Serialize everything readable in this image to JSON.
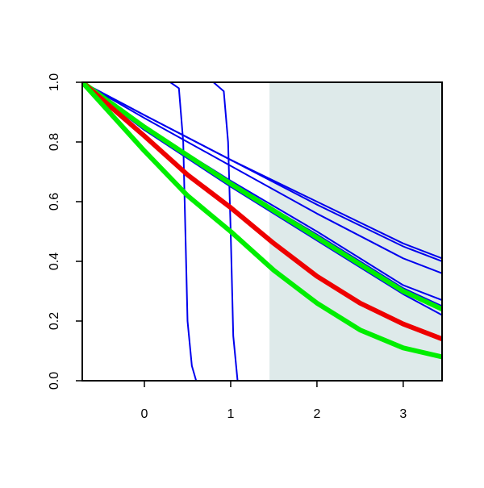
{
  "chart_data": {
    "type": "line",
    "title": "",
    "xlabel": "",
    "ylabel": "",
    "xlim": [
      -0.72,
      3.45
    ],
    "ylim": [
      0,
      1
    ],
    "x_ticks": [
      "0",
      "1",
      "2",
      "3"
    ],
    "y_ticks": [
      "0.0",
      "0.2",
      "0.4",
      "0.6",
      "0.8",
      "1.0"
    ],
    "x_tick_values": [
      0,
      1,
      2,
      3
    ],
    "y_tick_values": [
      0,
      0.2,
      0.4,
      0.6,
      0.8,
      1.0
    ],
    "grid": false,
    "legend": "none",
    "shaded_region": {
      "x_from": 1.45,
      "x_to": 3.45,
      "color": "#deeaea"
    },
    "series": [
      {
        "color": "#0000ee",
        "weight": "thin",
        "x": [
          -0.72,
          0.3,
          0.4,
          0.45,
          0.5,
          0.55,
          0.6,
          0.7,
          3.45
        ],
        "y": [
          1.0,
          1.0,
          0.98,
          0.8,
          0.2,
          0.05,
          0.0,
          0.0,
          0.0
        ]
      },
      {
        "color": "#0000ee",
        "weight": "thin",
        "x": [
          -0.72,
          0.8,
          0.92,
          0.97,
          1.0,
          1.03,
          1.08,
          1.15,
          3.45
        ],
        "y": [
          1.0,
          1.0,
          0.97,
          0.8,
          0.5,
          0.15,
          0.0,
          0.0,
          0.0
        ]
      },
      {
        "color": "#0000ee",
        "weight": "thin",
        "x": [
          -0.72,
          0.0,
          1.0,
          2.0,
          3.0,
          3.45
        ],
        "y": [
          1.0,
          0.89,
          0.74,
          0.6,
          0.46,
          0.41
        ]
      },
      {
        "color": "#0000ee",
        "weight": "thin",
        "x": [
          -0.72,
          0.0,
          1.0,
          2.0,
          3.0,
          3.45
        ],
        "y": [
          1.0,
          0.89,
          0.74,
          0.59,
          0.45,
          0.4
        ]
      },
      {
        "color": "#0000ee",
        "weight": "thin",
        "x": [
          -0.72,
          0.0,
          1.0,
          2.0,
          3.0,
          3.45
        ],
        "y": [
          1.0,
          0.88,
          0.72,
          0.56,
          0.41,
          0.36
        ]
      },
      {
        "color": "#0000ee",
        "weight": "thin",
        "x": [
          -0.72,
          0.0,
          1.0,
          2.0,
          3.0,
          3.45
        ],
        "y": [
          1.0,
          0.85,
          0.67,
          0.5,
          0.32,
          0.27
        ]
      },
      {
        "color": "#0000ee",
        "weight": "thin",
        "x": [
          -0.72,
          0.0,
          1.0,
          2.0,
          3.0,
          3.45
        ],
        "y": [
          1.0,
          0.84,
          0.66,
          0.49,
          0.31,
          0.25
        ]
      },
      {
        "color": "#0000ee",
        "weight": "thin",
        "x": [
          -0.72,
          0.0,
          1.0,
          2.0,
          3.0,
          3.45
        ],
        "y": [
          1.0,
          0.84,
          0.65,
          0.47,
          0.29,
          0.22
        ]
      },
      {
        "color": "#00ee00",
        "weight": "thick",
        "x": [
          -0.72,
          0.0,
          1.0,
          2.0,
          3.0,
          3.45
        ],
        "y": [
          1.0,
          0.85,
          0.66,
          0.48,
          0.3,
          0.24
        ]
      },
      {
        "color": "#ee0000",
        "weight": "thick",
        "x": [
          -0.72,
          0.0,
          0.5,
          1.0,
          1.5,
          2.0,
          2.5,
          3.0,
          3.45
        ],
        "y": [
          1.0,
          0.82,
          0.69,
          0.58,
          0.46,
          0.35,
          0.26,
          0.19,
          0.14
        ]
      },
      {
        "color": "#00ee00",
        "weight": "thick",
        "x": [
          -0.72,
          0.0,
          0.5,
          1.0,
          1.5,
          2.0,
          2.5,
          3.0,
          3.45
        ],
        "y": [
          1.0,
          0.77,
          0.62,
          0.5,
          0.37,
          0.26,
          0.17,
          0.11,
          0.08
        ]
      }
    ]
  }
}
